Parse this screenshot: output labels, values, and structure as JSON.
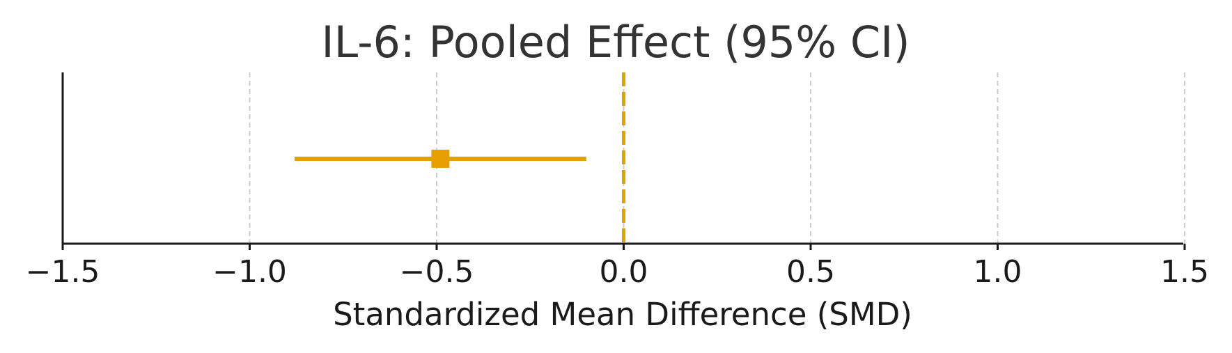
{
  "chart_data": {
    "type": "forest",
    "title": "IL-6: Pooled Effect (95% CI)",
    "xlabel": "Standardized Mean Difference (SMD)",
    "xlim": [
      -1.5,
      1.5
    ],
    "xticks": [
      -1.5,
      -1.0,
      -0.5,
      0.0,
      0.5,
      1.0,
      1.5
    ],
    "xtick_labels": [
      "−1.5",
      "−1.0",
      "−0.5",
      "0.0",
      "0.5",
      "1.0",
      "1.5"
    ],
    "grid": "vertical dashed",
    "reference_line": {
      "x": 0.0,
      "style": "dashed"
    },
    "estimate": {
      "smd": -0.49,
      "ci_low": -0.88,
      "ci_high": -0.1
    },
    "colors": {
      "estimate": "#E69F00",
      "reference": "#E69F00",
      "grid": "#cccccc",
      "axis": "#1a1a1a"
    }
  }
}
